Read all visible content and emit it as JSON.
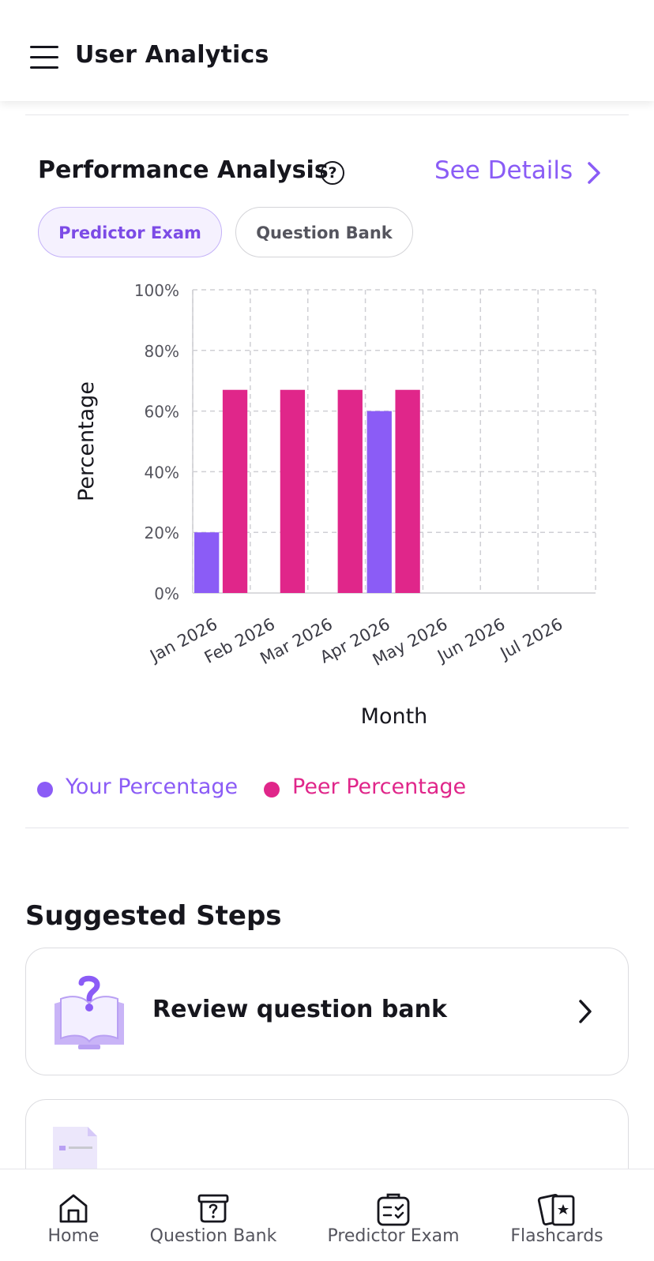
{
  "header": {
    "title": "User Analytics",
    "menu_icon": "hamburger-menu-icon"
  },
  "performance": {
    "title": "Performance Analysis",
    "help_icon": "question-circle-icon",
    "see_details_label": "See Details",
    "tabs": [
      {
        "label": "Predictor Exam",
        "active": true
      },
      {
        "label": "Question Bank",
        "active": false
      }
    ]
  },
  "chart_data": {
    "type": "bar",
    "categories": [
      "Jan 2026",
      "Feb 2026",
      "Mar 2026",
      "Apr 2026",
      "May 2026",
      "Jun 2026",
      "Jul 2026"
    ],
    "series": [
      {
        "name": "Your Percentage",
        "color": "#8b5cf6",
        "values": [
          20,
          null,
          null,
          60,
          null,
          null,
          null
        ]
      },
      {
        "name": "Peer Percentage",
        "color": "#e0268a",
        "values": [
          67,
          67,
          67,
          67,
          null,
          null,
          null
        ]
      }
    ],
    "xlabel": "Month",
    "ylabel": "Percentage",
    "ylim": [
      0,
      100
    ],
    "yticks": [
      "0%",
      "20%",
      "40%",
      "60%",
      "80%",
      "100%"
    ],
    "grid": true,
    "legend_position": "bottom"
  },
  "suggested": {
    "title": "Suggested Steps",
    "cards": [
      {
        "label": "Review question bank",
        "icon": "book-question-icon"
      },
      {
        "label": "",
        "icon": "document-icon"
      }
    ]
  },
  "bottom_nav": [
    {
      "label": "Home",
      "icon": "home-icon"
    },
    {
      "label": "Question Bank",
      "icon": "question-bank-icon"
    },
    {
      "label": "Predictor Exam",
      "icon": "predictor-exam-icon"
    },
    {
      "label": "Flashcards",
      "icon": "flashcards-icon"
    }
  ]
}
